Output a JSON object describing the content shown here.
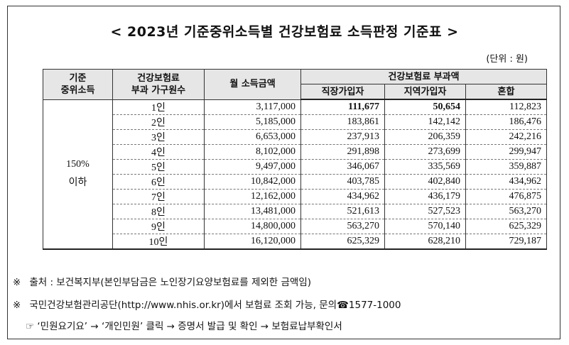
{
  "title": "< 2023년 기준중위소득별 건강보험료 소득판정 기준표 >",
  "unit": "(단위 : 원)",
  "headers": {
    "col1_line1": "기준",
    "col1_line2": "중위소득",
    "col2_line1": "건강보험료",
    "col2_line2": "부과 가구원수",
    "col3": "월 소득금액",
    "group": "건강보험료 부과액",
    "sub1": "직장가입자",
    "sub2": "지역가입자",
    "sub3": "혼합"
  },
  "group_label_line1": "150%",
  "group_label_line2": "이하",
  "rows": [
    {
      "household": "1인",
      "income": "3,117,000",
      "employee": "111,677",
      "region": "50,654",
      "mixed": "112,823"
    },
    {
      "household": "2인",
      "income": "5,185,000",
      "employee": "183,861",
      "region": "142,142",
      "mixed": "186,476"
    },
    {
      "household": "3인",
      "income": "6,653,000",
      "employee": "237,913",
      "region": "206,359",
      "mixed": "242,216"
    },
    {
      "household": "4인",
      "income": "8,102,000",
      "employee": "291,898",
      "region": "273,699",
      "mixed": "299,947"
    },
    {
      "household": "5인",
      "income": "9,497,000",
      "employee": "346,067",
      "region": "335,569",
      "mixed": "359,887"
    },
    {
      "household": "6인",
      "income": "10,842,000",
      "employee": "403,785",
      "region": "402,840",
      "mixed": "434,962"
    },
    {
      "household": "7인",
      "income": "12,162,000",
      "employee": "434,962",
      "region": "436,179",
      "mixed": "476,875"
    },
    {
      "household": "8인",
      "income": "13,481,000",
      "employee": "521,613",
      "region": "527,523",
      "mixed": "563,270"
    },
    {
      "household": "9인",
      "income": "14,800,000",
      "employee": "563,270",
      "region": "570,140",
      "mixed": "625,329"
    },
    {
      "household": "10인",
      "income": "16,120,000",
      "employee": "625,329",
      "region": "628,210",
      "mixed": "729,187"
    }
  ],
  "notes": {
    "mark": "※",
    "source": "출처 : 보건복지부(본인부담금은 노인장기요양보험료를 제외한 금액임)",
    "inquiry": "국민건강보험관리공단(http://www.nhis.or.kr)에서 보험료 조회 가능, 문의☎1577-1000",
    "path": "☞ ‘민원요기요’ → ‘개인민원’ 클릭 → 증명서 발급 및 확인 → 보험료납부확인서"
  }
}
